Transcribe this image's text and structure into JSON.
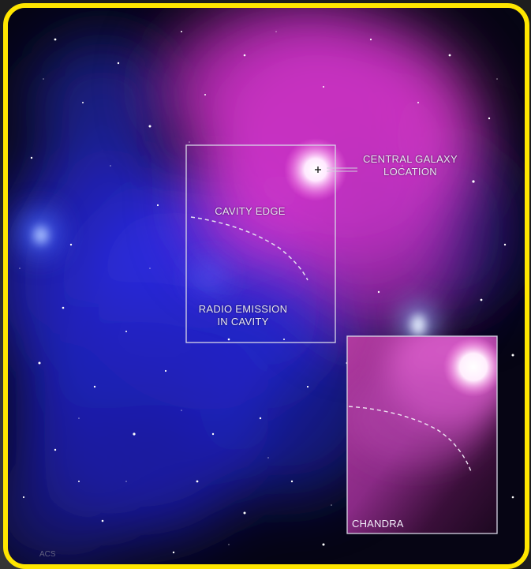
{
  "image": {
    "frame_color": "#ffe600",
    "annotations": {
      "central_galaxy_line1": "CENTRAL GALAXY",
      "central_galaxy_line2": "LOCATION",
      "cavity_edge": "CAVITY EDGE",
      "radio_emission_line1": "RADIO EMISSION",
      "radio_emission_line2": "IN CAVITY",
      "inset_label": "CHANDRA"
    },
    "credit_fragment": "ACS",
    "colors": {
      "xray_emission": "#ff4fd8",
      "radio_emission": "#2a2cff",
      "background": "#070618",
      "annotation_text": "#e8e6f2"
    }
  }
}
